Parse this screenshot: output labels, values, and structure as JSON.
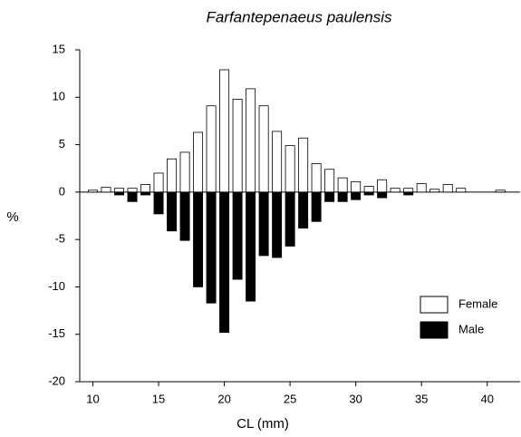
{
  "chart_data": {
    "type": "bar",
    "title": "Farfantepenaeus paulensis",
    "x_label": "CL (mm)",
    "y_label": "%",
    "x": [
      10,
      11,
      12,
      13,
      14,
      15,
      16,
      17,
      18,
      19,
      20,
      21,
      22,
      23,
      24,
      25,
      26,
      27,
      28,
      29,
      30,
      31,
      32,
      33,
      34,
      35,
      36,
      37,
      38,
      39,
      40,
      41
    ],
    "series": [
      {
        "name": "Female",
        "color": "#ffffff",
        "values": [
          0.2,
          0.5,
          0.4,
          0.4,
          0.8,
          2.0,
          3.5,
          4.2,
          6.3,
          9.1,
          12.9,
          9.8,
          10.9,
          9.1,
          6.4,
          4.9,
          5.7,
          3.0,
          2.4,
          1.5,
          1.1,
          0.6,
          1.3,
          0.4,
          0.4,
          0.9,
          0.3,
          0.8,
          0.4,
          0,
          0,
          0.2
        ]
      },
      {
        "name": "Male",
        "color": "#000000",
        "values": [
          0,
          0,
          -0.3,
          -1.0,
          -0.3,
          -2.3,
          -4.1,
          -5.1,
          -10.0,
          -11.7,
          -14.8,
          -9.2,
          -11.5,
          -6.7,
          -6.9,
          -5.7,
          -3.8,
          -3.1,
          -1.0,
          -1.0,
          -0.8,
          -0.3,
          -0.6,
          0,
          -0.3,
          0,
          0,
          0,
          0,
          0,
          0,
          0
        ]
      }
    ],
    "xlim": [
      9,
      42.5
    ],
    "xticks": [
      10,
      15,
      20,
      25,
      30,
      35,
      40
    ],
    "ylim": [
      -20,
      15
    ],
    "yticks": [
      -20,
      -15,
      -10,
      -5,
      0,
      5,
      10,
      15
    ],
    "legend": "lower right"
  }
}
